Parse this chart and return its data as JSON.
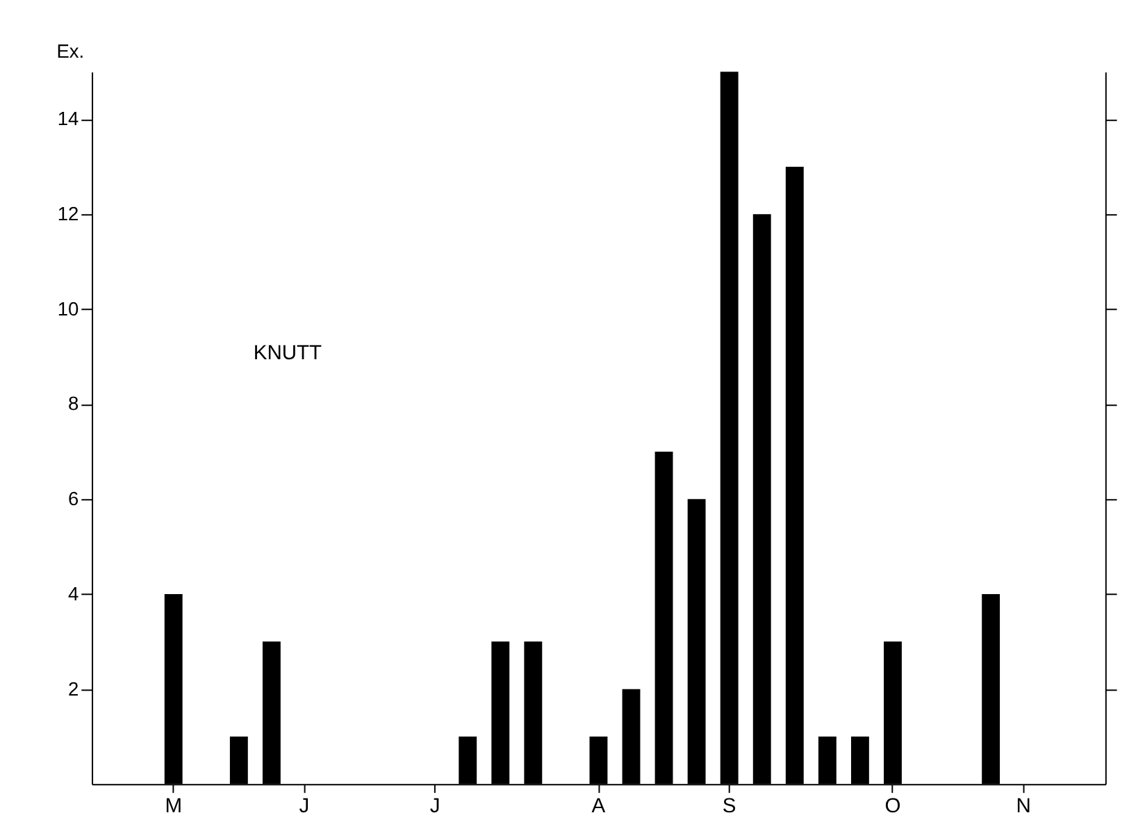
{
  "chart_data": {
    "type": "bar",
    "ylabel": "Ex.",
    "annotations": [
      "KNUTT"
    ],
    "categories": [
      null,
      null,
      "M",
      null,
      null,
      null,
      "J",
      null,
      null,
      null,
      "J",
      null,
      null,
      null,
      null,
      "A",
      null,
      null,
      null,
      "S",
      null,
      null,
      null,
      null,
      "O",
      null,
      null,
      null,
      "N",
      null,
      null
    ],
    "values": [
      0,
      0,
      4,
      0,
      1,
      3,
      0,
      0,
      0,
      0,
      0,
      1,
      3,
      3,
      0,
      1,
      2,
      7,
      6,
      15,
      12,
      13,
      1,
      1,
      3,
      0,
      0,
      4,
      0,
      0,
      0
    ],
    "color": "#000000",
    "ylim": [
      0,
      15
    ],
    "yticks": [
      2,
      4,
      6,
      8,
      10,
      12,
      14
    ],
    "grid": false
  }
}
